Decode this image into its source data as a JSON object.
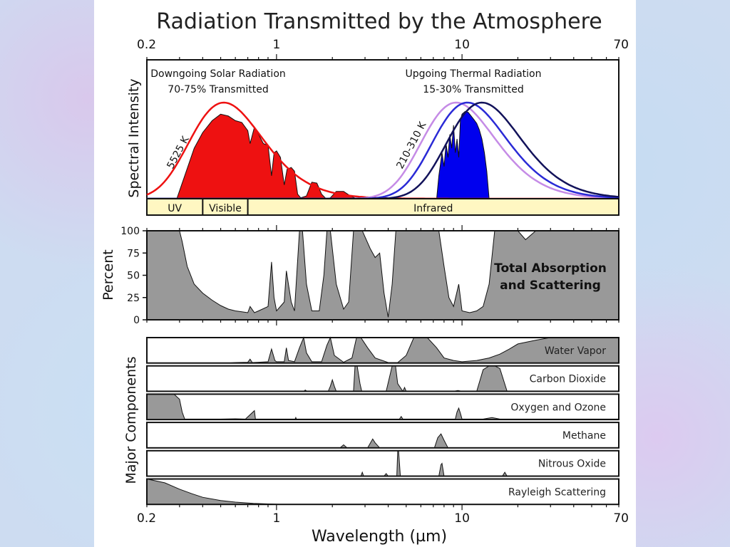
{
  "chart_data": {
    "type": "area",
    "title": "Radiation Transmitted by the Atmosphere",
    "xlabel": "Wavelength (µm)",
    "x_scale": "log",
    "xlim": [
      0.2,
      70
    ],
    "x_ticks": [
      "0.2",
      "1",
      "10",
      "70"
    ],
    "spectrum_panel": {
      "ylabel": "Spectral Intensity",
      "solar": {
        "label_line1": "Downgoing Solar Radiation",
        "label_line2": "70-75% Transmitted",
        "temperature_label": "5525 K",
        "color": "#ee1111",
        "blackbody_peak_x": 0.52,
        "transmitted_x": [
          0.29,
          0.32,
          0.36,
          0.4,
          0.45,
          0.5,
          0.55,
          0.6,
          0.65,
          0.7,
          0.72,
          0.76,
          0.8,
          0.85,
          0.9,
          0.94,
          0.97,
          1.0,
          1.05,
          1.1,
          1.14,
          1.2,
          1.25,
          1.3,
          1.35,
          1.45,
          1.55,
          1.65,
          1.75,
          1.85,
          1.95,
          2.1,
          2.3,
          2.5,
          2.7,
          3.0,
          3.3,
          3.6,
          4.0
        ],
        "transmitted_y": [
          0.0,
          0.25,
          0.55,
          0.72,
          0.85,
          0.92,
          0.9,
          0.85,
          0.83,
          0.74,
          0.6,
          0.78,
          0.7,
          0.6,
          0.58,
          0.25,
          0.5,
          0.52,
          0.45,
          0.15,
          0.32,
          0.34,
          0.3,
          0.05,
          0.01,
          0.03,
          0.18,
          0.17,
          0.05,
          0.0,
          0.01,
          0.08,
          0.08,
          0.03,
          0.0,
          0.02,
          0.01,
          0.01,
          0.0
        ]
      },
      "thermal": {
        "label_line1": "Upgoing Thermal Radiation",
        "label_line2": "15-30% Transmitted",
        "temperature_label": "210-310 K",
        "color": "#0000ee",
        "blackbody_peak_x": [
          9.3,
          10.7,
          12.8
        ],
        "blackbody_colors": [
          "#c58be6",
          "#2a2ad6",
          "#12125a"
        ],
        "transmitted_x": [
          7.3,
          7.5,
          7.8,
          8.0,
          8.2,
          8.4,
          8.6,
          8.8,
          9.0,
          9.2,
          9.4,
          9.6,
          9.8,
          10.0,
          10.4,
          10.8,
          11.2,
          11.6,
          12.0,
          12.4,
          12.8,
          13.2,
          13.6,
          14.0
        ],
        "transmitted_y": [
          0.0,
          0.25,
          0.5,
          0.35,
          0.6,
          0.45,
          0.7,
          0.55,
          0.8,
          0.5,
          0.65,
          0.45,
          0.85,
          0.92,
          0.95,
          0.94,
          0.9,
          0.86,
          0.82,
          0.75,
          0.65,
          0.5,
          0.3,
          0.0
        ]
      }
    },
    "bands": [
      {
        "name": "UV",
        "from": 0.2,
        "to": 0.4
      },
      {
        "name": "Visible",
        "from": 0.4,
        "to": 0.7
      },
      {
        "name": "Infrared",
        "from": 0.7,
        "to": 70
      }
    ],
    "total_panel": {
      "ylabel": "Percent",
      "label_line1": "Total Absorption",
      "label_line2": "and Scattering",
      "ylim": [
        0,
        100
      ],
      "y_ticks": [
        "0",
        "25",
        "50",
        "75",
        "100"
      ],
      "x": [
        0.2,
        0.3,
        0.31,
        0.33,
        0.36,
        0.4,
        0.45,
        0.5,
        0.55,
        0.6,
        0.65,
        0.7,
        0.72,
        0.76,
        0.8,
        0.9,
        0.94,
        0.97,
        1.0,
        1.1,
        1.13,
        1.2,
        1.25,
        1.33,
        1.38,
        1.45,
        1.55,
        1.7,
        1.8,
        1.87,
        1.95,
        2.1,
        2.3,
        2.45,
        2.6,
        2.75,
        2.9,
        3.2,
        3.4,
        3.6,
        3.8,
        4.0,
        4.2,
        4.4,
        4.6,
        4.8,
        5.5,
        6.5,
        7.0,
        7.5,
        8.0,
        8.5,
        9.0,
        9.6,
        10.0,
        11.0,
        12.0,
        13.0,
        14.0,
        15.0,
        17.0,
        20.0,
        22.0,
        25.0,
        70.0
      ],
      "y": [
        100,
        100,
        88,
        60,
        40,
        30,
        22,
        16,
        12,
        10,
        9,
        8,
        15,
        8,
        10,
        15,
        65,
        25,
        10,
        20,
        55,
        20,
        10,
        100,
        100,
        40,
        10,
        10,
        50,
        100,
        100,
        40,
        12,
        20,
        100,
        100,
        100,
        80,
        70,
        75,
        30,
        3,
        40,
        100,
        100,
        100,
        100,
        100,
        100,
        100,
        60,
        25,
        15,
        40,
        10,
        8,
        10,
        15,
        40,
        100,
        100,
        100,
        90,
        100,
        100
      ]
    },
    "components": [
      {
        "name": "Water Vapor",
        "x": [
          0.2,
          0.55,
          0.6,
          0.7,
          0.72,
          0.74,
          0.8,
          0.9,
          0.94,
          0.98,
          1.0,
          1.1,
          1.13,
          1.16,
          1.25,
          1.33,
          1.4,
          1.45,
          1.55,
          1.75,
          1.87,
          1.95,
          2.05,
          2.3,
          2.55,
          2.7,
          2.85,
          3.1,
          3.4,
          4.0,
          4.5,
          5.0,
          5.5,
          6.5,
          7.3,
          8.0,
          9.0,
          10.0,
          12.0,
          14.0,
          16.0,
          18.0,
          20.0,
          25.0,
          30.0,
          70.0
        ],
        "y": [
          0,
          0,
          2,
          3,
          15,
          2,
          3,
          5,
          55,
          10,
          5,
          5,
          60,
          10,
          5,
          60,
          100,
          40,
          5,
          5,
          70,
          100,
          30,
          3,
          20,
          100,
          100,
          60,
          20,
          2,
          2,
          30,
          100,
          100,
          60,
          20,
          10,
          5,
          10,
          20,
          35,
          55,
          75,
          90,
          100,
          100
        ]
      },
      {
        "name": "Carbon Dioxide",
        "x": [
          0.2,
          1.4,
          1.43,
          1.46,
          1.55,
          1.9,
          1.95,
          2.0,
          2.05,
          2.1,
          2.6,
          2.65,
          2.72,
          2.82,
          2.88,
          3.9,
          4.2,
          4.26,
          4.38,
          4.5,
          4.8,
          4.9,
          5.0,
          9.0,
          9.5,
          10.0,
          12.0,
          13.0,
          14.0,
          15.0,
          16.0,
          17.5,
          70.0
        ],
        "y": [
          0,
          0,
          5,
          0,
          0,
          0,
          20,
          45,
          20,
          0,
          0,
          100,
          100,
          30,
          0,
          0,
          100,
          100,
          100,
          30,
          0,
          15,
          0,
          0,
          3,
          0,
          0,
          85,
          100,
          100,
          90,
          0,
          0
        ]
      },
      {
        "name": "Oxygen and Ozone",
        "x": [
          0.2,
          0.24,
          0.28,
          0.3,
          0.31,
          0.32,
          0.5,
          0.6,
          0.68,
          0.76,
          0.77,
          1.26,
          1.27,
          1.28,
          4.6,
          4.7,
          4.8,
          9.2,
          9.4,
          9.6,
          9.8,
          10.0,
          13.0,
          14.5,
          16.0,
          70.0
        ],
        "y": [
          100,
          100,
          100,
          80,
          30,
          2,
          2,
          3,
          2,
          35,
          2,
          2,
          8,
          2,
          2,
          12,
          2,
          2,
          30,
          45,
          25,
          2,
          2,
          8,
          2,
          2
        ]
      },
      {
        "name": "Methane",
        "x": [
          0.2,
          2.2,
          2.3,
          2.4,
          3.1,
          3.3,
          3.4,
          3.6,
          7.1,
          7.4,
          7.7,
          8.0,
          8.4,
          70.0
        ],
        "y": [
          0,
          0,
          12,
          0,
          0,
          35,
          20,
          0,
          0,
          40,
          55,
          30,
          0,
          0
        ]
      },
      {
        "name": "Nitrous Oxide",
        "x": [
          0.2,
          2.85,
          2.9,
          2.95,
          3.8,
          3.9,
          4.0,
          4.45,
          4.5,
          4.55,
          4.65,
          7.5,
          7.7,
          7.8,
          8.0,
          16.5,
          17.0,
          17.5,
          70.0
        ],
        "y": [
          0,
          0,
          15,
          0,
          0,
          10,
          0,
          0,
          100,
          100,
          0,
          0,
          45,
          50,
          0,
          0,
          15,
          0,
          0
        ]
      },
      {
        "name": "Rayleigh Scattering",
        "x": [
          0.2,
          0.25,
          0.3,
          0.35,
          0.4,
          0.5,
          0.6,
          0.75,
          0.9,
          1.1,
          70.0
        ],
        "y": [
          100,
          85,
          60,
          42,
          28,
          15,
          9,
          4,
          2,
          0,
          0
        ]
      }
    ],
    "components_ylabel": "Major Components"
  }
}
